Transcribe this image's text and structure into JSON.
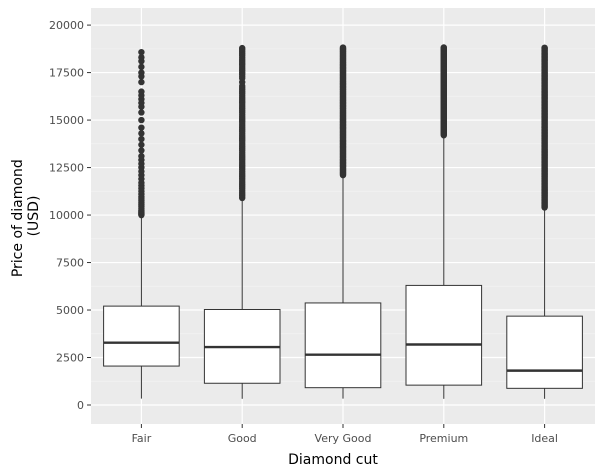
{
  "chart_data": {
    "type": "boxplot",
    "title": "",
    "xlabel": "Diamond cut",
    "ylabel_lines": [
      "Price of diamond",
      "(USD)"
    ],
    "ylim": [
      -1000,
      20900
    ],
    "yticks": [
      0,
      2500,
      5000,
      7500,
      10000,
      12500,
      15000,
      17500,
      20000
    ],
    "ytick_labels": [
      "0",
      "2500",
      "5000",
      "7500",
      "10000",
      "12500",
      "15000",
      "17500",
      "20000"
    ],
    "grid": true,
    "categories": [
      "Fair",
      "Good",
      "Very Good",
      "Premium",
      "Ideal"
    ],
    "boxes": [
      {
        "category": "Fair",
        "whisker_low": 337,
        "q1": 2050,
        "median": 3282,
        "q3": 5206,
        "whisker_high": 9950,
        "outliers": [
          10000,
          10050,
          10100,
          10150,
          10200,
          10250,
          10350,
          10450,
          10550,
          10650,
          10750,
          10850,
          10950,
          11100,
          11250,
          11400,
          11550,
          11700,
          11900,
          12100,
          12300,
          12500,
          12700,
          12900,
          13100,
          13400,
          13700,
          14000,
          14300,
          14600,
          15000,
          15400,
          15700,
          15900,
          16100,
          16300,
          16500,
          17000,
          17300,
          17500,
          17800,
          18100,
          18300,
          18574
        ]
      },
      {
        "category": "Good",
        "whisker_low": 327,
        "q1": 1145,
        "median": 3050,
        "q3": 5028,
        "whisker_high": 10800,
        "outliers": [
          10900,
          11000,
          11100,
          11200,
          11300,
          11400,
          11500,
          11600,
          11700,
          11800,
          11900,
          12000,
          12100,
          12200,
          12300,
          12400,
          12500,
          12600,
          12700,
          12800,
          12900,
          13000,
          13100,
          13200,
          13300,
          13400,
          13500,
          13600,
          13700,
          13800,
          13900,
          14000,
          14100,
          14200,
          14300,
          14400,
          14500,
          14600,
          14700,
          14800,
          14900,
          15000,
          15100,
          15200,
          15300,
          15400,
          15500,
          15600,
          15700,
          15800,
          15900,
          16000,
          16100,
          16200,
          16300,
          16400,
          16500,
          16600,
          16700,
          16800,
          17000,
          17200,
          17300,
          17400,
          17500,
          17600,
          17700,
          17800,
          17900,
          18000,
          18100,
          18200,
          18300,
          18400,
          18500,
          18600,
          18700,
          18788
        ]
      },
      {
        "category": "Very Good",
        "whisker_low": 336,
        "q1": 912,
        "median": 2648,
        "q3": 5373,
        "whisker_high": 12050,
        "outliers_range": [
          12100,
          18818
        ]
      },
      {
        "category": "Premium",
        "whisker_low": 326,
        "q1": 1046,
        "median": 3185,
        "q3": 6296,
        "whisker_high": 14150,
        "outliers_range": [
          14200,
          18823
        ]
      },
      {
        "category": "Ideal",
        "whisker_low": 326,
        "q1": 878,
        "median": 1810,
        "q3": 4678,
        "whisker_high": 10350,
        "outliers_range": [
          10400,
          18806
        ]
      }
    ]
  },
  "colors": {
    "panel_background": "#ebebeb",
    "grid_major": "#ffffff",
    "grid_minor": "#f2f2f2",
    "box_fill": "#ffffff",
    "box_line": "#333333",
    "outlier": "#333333",
    "tick_label": "#4d4d4d"
  }
}
